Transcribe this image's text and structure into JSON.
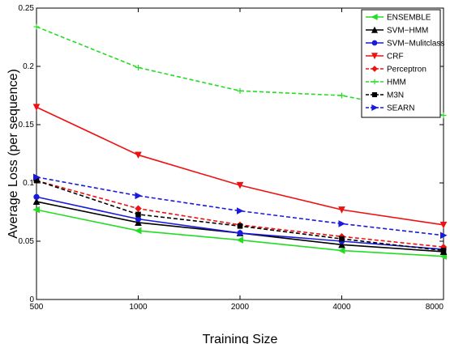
{
  "chart_data": {
    "type": "line",
    "xlabel": "Training Size",
    "ylabel": "Average Loss (per sequence)",
    "x_tick_labels": [
      "500",
      "1000",
      "2000",
      "4000",
      "8000"
    ],
    "y_tick_labels": [
      "0",
      "0.05",
      "0.1",
      "0.15",
      "0.2",
      "0.25"
    ],
    "y_ticks": [
      0,
      0.05,
      0.1,
      0.15,
      0.2,
      0.25
    ],
    "ylim": [
      0,
      0.25
    ],
    "legend_position": "top-right",
    "grid": false,
    "categories": [
      "500",
      "1000",
      "2000",
      "4000",
      "8000"
    ],
    "series": [
      {
        "name": "ENSEMBLE",
        "color": "#22dd22",
        "dash": "solid",
        "marker": "triangle-left",
        "values": [
          0.077,
          0.059,
          0.051,
          0.042,
          0.037
        ]
      },
      {
        "name": "SVM−HMM",
        "color": "#000000",
        "dash": "solid",
        "marker": "triangle-up",
        "values": [
          0.084,
          0.066,
          0.057,
          0.047,
          0.041
        ]
      },
      {
        "name": "SVM−Mulitclass",
        "color": "#1a1adc",
        "dash": "solid",
        "marker": "circle",
        "values": [
          0.088,
          0.069,
          0.057,
          0.05,
          0.043
        ]
      },
      {
        "name": "CRF",
        "color": "#ee1111",
        "dash": "solid",
        "marker": "triangle-down",
        "values": [
          0.165,
          0.124,
          0.098,
          0.077,
          0.064
        ]
      },
      {
        "name": "Perceptron",
        "color": "#ee1111",
        "dash": "dashed",
        "marker": "diamond",
        "values": [
          0.102,
          0.078,
          0.064,
          0.054,
          0.045
        ]
      },
      {
        "name": "HMM",
        "color": "#22dd22",
        "dash": "dashed",
        "marker": "plus",
        "values": [
          0.234,
          0.199,
          0.179,
          0.175,
          0.158
        ]
      },
      {
        "name": "M3N",
        "color": "#000000",
        "dash": "dashed",
        "marker": "square",
        "values": [
          0.102,
          0.073,
          0.063,
          0.052,
          0.042
        ]
      },
      {
        "name": "SEARN",
        "color": "#1a1adc",
        "dash": "dashed",
        "marker": "triangle-right",
        "values": [
          0.105,
          0.089,
          0.076,
          0.065,
          0.055
        ]
      }
    ]
  }
}
